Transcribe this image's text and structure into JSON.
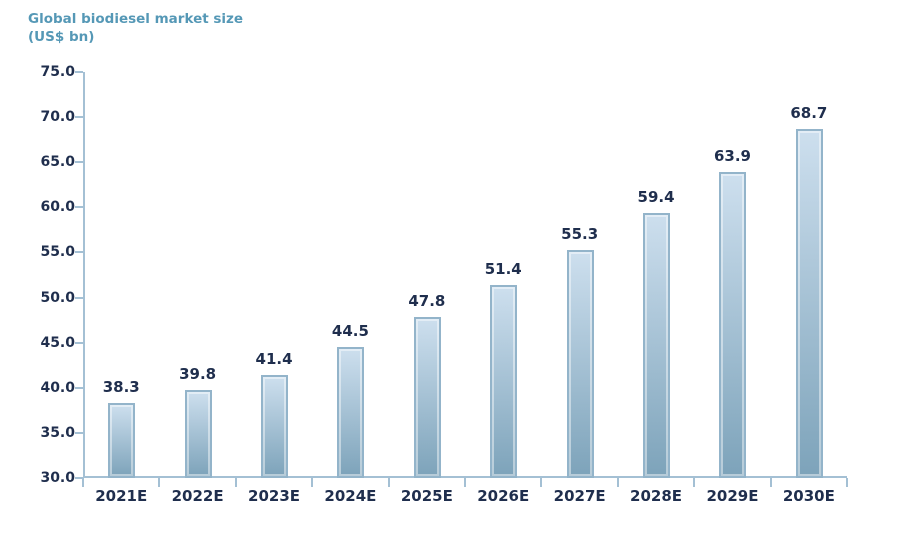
{
  "header": {
    "title_line1": "Global biodiesel market size",
    "title_line2": "(US$ bn)"
  },
  "chart_data": {
    "type": "bar",
    "title": "Global biodiesel market size",
    "subtitle": "(US$ bn)",
    "categories": [
      "2021E",
      "2022E",
      "2023E",
      "2024E",
      "2025E",
      "2026E",
      "2027E",
      "2028E",
      "2029E",
      "2030E"
    ],
    "values": [
      38.3,
      39.8,
      41.4,
      44.5,
      47.8,
      51.4,
      55.3,
      59.4,
      63.9,
      68.7
    ],
    "xlabel": "",
    "ylabel": "US$ bn",
    "ylim": [
      30.0,
      75.0
    ],
    "y_tick_step": 5.0,
    "y_tick_decimals": 1,
    "grid": false,
    "legend": "none",
    "data_labels": true,
    "colors": {
      "title": "#5598b6",
      "axis": "#a4c0d4",
      "text": "#1f2e4d",
      "bar_border": "#93b4ca",
      "bar_gradient_top": "#cddfee",
      "bar_gradient_bottom": "#7da3ba",
      "background": "#ffffff"
    }
  }
}
